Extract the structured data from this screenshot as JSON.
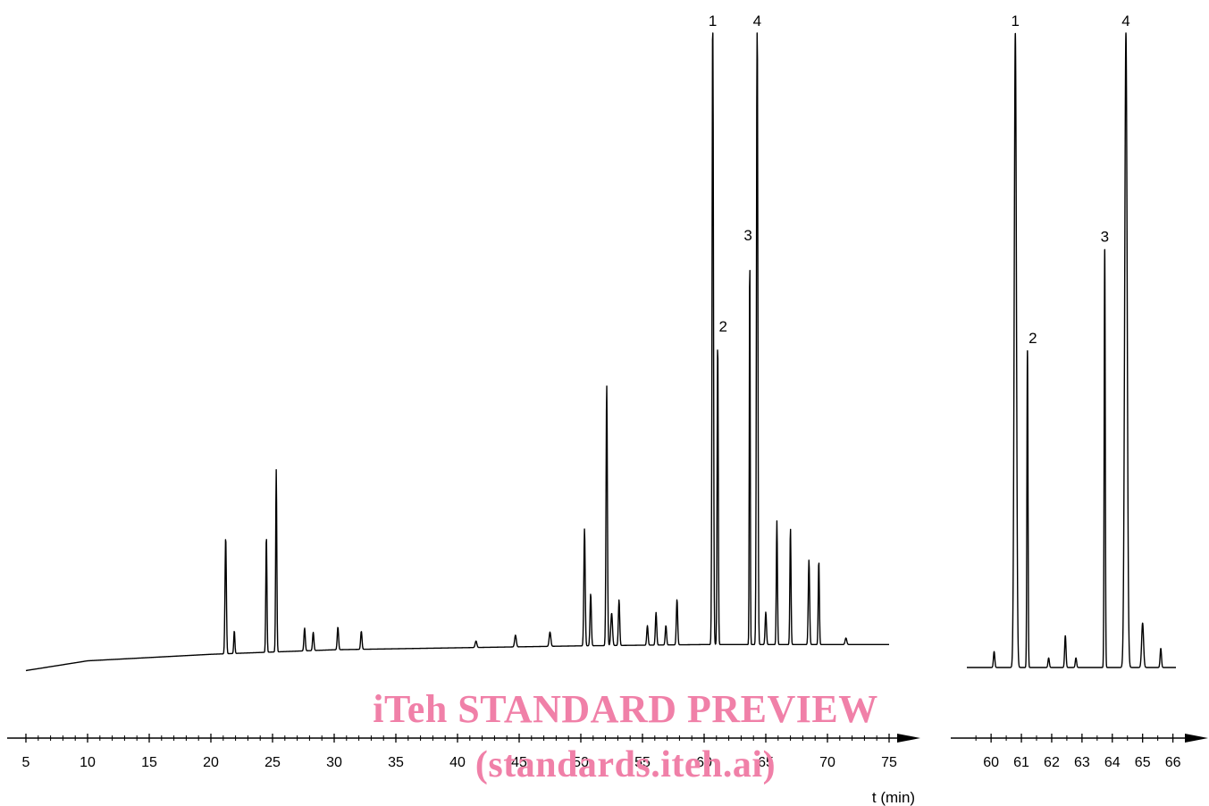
{
  "chart_data": [
    {
      "type": "line",
      "panel": "full-chromatogram",
      "xlabel": "t (min)",
      "ylabel": "",
      "xlim": [
        5,
        75
      ],
      "xticks": [
        5,
        10,
        15,
        20,
        25,
        30,
        35,
        40,
        45,
        50,
        55,
        60,
        65,
        70,
        75
      ],
      "grid": false,
      "baseline": [
        [
          5,
          0.02
        ],
        [
          10,
          0.035
        ],
        [
          20,
          0.045
        ],
        [
          30,
          0.052
        ],
        [
          40,
          0.055
        ],
        [
          50,
          0.058
        ],
        [
          60,
          0.06
        ],
        [
          75,
          0.06
        ]
      ],
      "peaks": [
        {
          "x": 21.2,
          "y": 0.18,
          "w": 0.12
        },
        {
          "x": 21.9,
          "y": 0.035,
          "w": 0.1
        },
        {
          "x": 24.5,
          "y": 0.18,
          "w": 0.1
        },
        {
          "x": 25.3,
          "y": 0.28,
          "w": 0.1
        },
        {
          "x": 27.6,
          "y": 0.035,
          "w": 0.12
        },
        {
          "x": 28.3,
          "y": 0.028,
          "w": 0.12
        },
        {
          "x": 30.3,
          "y": 0.035,
          "w": 0.12
        },
        {
          "x": 32.2,
          "y": 0.028,
          "w": 0.12
        },
        {
          "x": 41.5,
          "y": 0.01,
          "w": 0.15
        },
        {
          "x": 44.7,
          "y": 0.018,
          "w": 0.15
        },
        {
          "x": 47.5,
          "y": 0.022,
          "w": 0.15
        },
        {
          "x": 50.3,
          "y": 0.18,
          "w": 0.12
        },
        {
          "x": 50.8,
          "y": 0.08,
          "w": 0.12
        },
        {
          "x": 52.1,
          "y": 0.4,
          "w": 0.12
        },
        {
          "x": 52.5,
          "y": 0.05,
          "w": 0.15
        },
        {
          "x": 53.1,
          "y": 0.07,
          "w": 0.12
        },
        {
          "x": 55.4,
          "y": 0.03,
          "w": 0.12
        },
        {
          "x": 56.1,
          "y": 0.05,
          "w": 0.12
        },
        {
          "x": 56.9,
          "y": 0.03,
          "w": 0.12
        },
        {
          "x": 57.8,
          "y": 0.07,
          "w": 0.12
        },
        {
          "x": 60.7,
          "y": 1.0,
          "w": 0.12
        },
        {
          "x": 61.1,
          "y": 0.47,
          "w": 0.1
        },
        {
          "x": 63.7,
          "y": 0.61,
          "w": 0.08
        },
        {
          "x": 64.3,
          "y": 1.0,
          "w": 0.12
        },
        {
          "x": 65.0,
          "y": 0.05,
          "w": 0.12
        },
        {
          "x": 65.9,
          "y": 0.19,
          "w": 0.1
        },
        {
          "x": 67.0,
          "y": 0.18,
          "w": 0.1
        },
        {
          "x": 68.5,
          "y": 0.13,
          "w": 0.12
        },
        {
          "x": 69.3,
          "y": 0.13,
          "w": 0.1
        },
        {
          "x": 71.5,
          "y": 0.01,
          "w": 0.15
        }
      ],
      "peak_labels": [
        {
          "text": "1",
          "x": 60.7
        },
        {
          "text": "2",
          "x": 61.1
        },
        {
          "text": "3",
          "x": 63.7
        },
        {
          "text": "4",
          "x": 64.3
        }
      ]
    },
    {
      "type": "line",
      "panel": "expanded-region",
      "xlabel": "",
      "ylabel": "",
      "xlim": [
        59.2,
        66.1
      ],
      "xticks": [
        60,
        61,
        62,
        63,
        64,
        65,
        66
      ],
      "grid": false,
      "baseline": [
        [
          59.2,
          0.0
        ],
        [
          66.1,
          0.0
        ]
      ],
      "peaks": [
        {
          "x": 60.1,
          "y": 0.025,
          "w": 0.05
        },
        {
          "x": 60.8,
          "y": 1.0,
          "w": 0.08
        },
        {
          "x": 61.2,
          "y": 0.5,
          "w": 0.04
        },
        {
          "x": 61.9,
          "y": 0.015,
          "w": 0.05
        },
        {
          "x": 62.45,
          "y": 0.05,
          "w": 0.05
        },
        {
          "x": 62.8,
          "y": 0.015,
          "w": 0.05
        },
        {
          "x": 63.75,
          "y": 0.66,
          "w": 0.04
        },
        {
          "x": 64.45,
          "y": 1.0,
          "w": 0.09
        },
        {
          "x": 65.0,
          "y": 0.07,
          "w": 0.07
        },
        {
          "x": 65.6,
          "y": 0.03,
          "w": 0.05
        }
      ],
      "peak_labels": [
        {
          "text": "1",
          "x": 60.8
        },
        {
          "text": "2",
          "x": 61.2
        },
        {
          "text": "3",
          "x": 63.75
        },
        {
          "text": "4",
          "x": 64.45
        }
      ]
    }
  ],
  "watermark": {
    "line1": "iTeh STANDARD PREVIEW",
    "line2": "(standards.iteh.ai)",
    "color": "#f080a8"
  },
  "colors": {
    "trace": "#000000",
    "axis": "#000000"
  }
}
